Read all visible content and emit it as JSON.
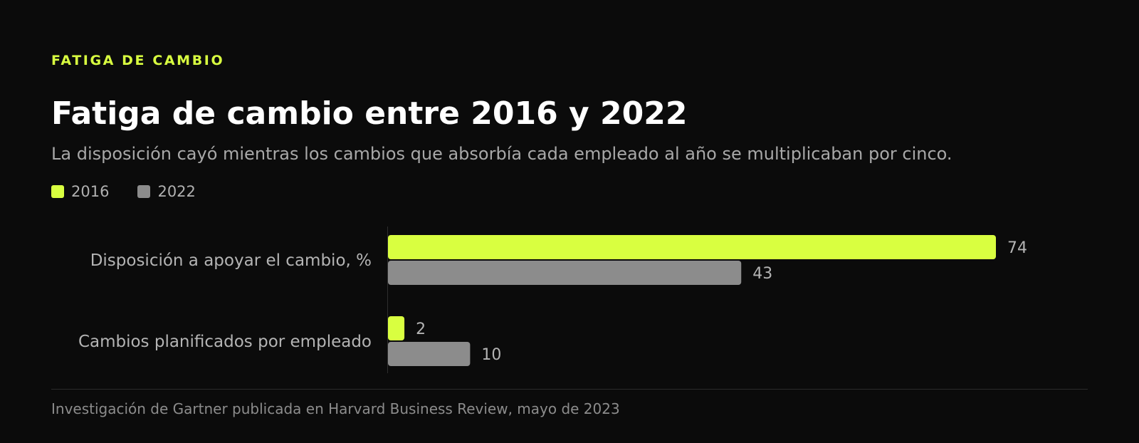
{
  "header": {
    "eyebrow": "FATIGA DE CAMBIO",
    "title": "Fatiga de cambio entre 2016 y 2022",
    "subtitle": "La disposición cayó mientras los cambios que absorbía cada empleado al año se multiplicaban por cinco."
  },
  "legend": [
    {
      "label": "2016",
      "color": "#d9ff40"
    },
    {
      "label": "2022",
      "color": "#8c8c8c"
    }
  ],
  "chart_data": {
    "type": "bar",
    "orientation": "horizontal",
    "title": "Fatiga de cambio entre 2016 y 2022",
    "subtitle": "La disposición cayó mientras los cambios que absorbía cada empleado al año se multiplicaban por cinco.",
    "categories": [
      "Disposición a apoyar el cambio, %",
      "Cambios planificados por empleado"
    ],
    "series": [
      {
        "name": "2016",
        "color": "#d9ff40",
        "values": [
          74,
          2
        ]
      },
      {
        "name": "2022",
        "color": "#8c8c8c",
        "values": [
          43,
          10
        ]
      }
    ],
    "xlim": [
      0,
      80
    ],
    "grid": false,
    "legend_position": "top-left",
    "data_labels": true
  },
  "footer": {
    "source": "Investigación de Gartner publicada en Harvard Business Review, mayo de 2023"
  }
}
